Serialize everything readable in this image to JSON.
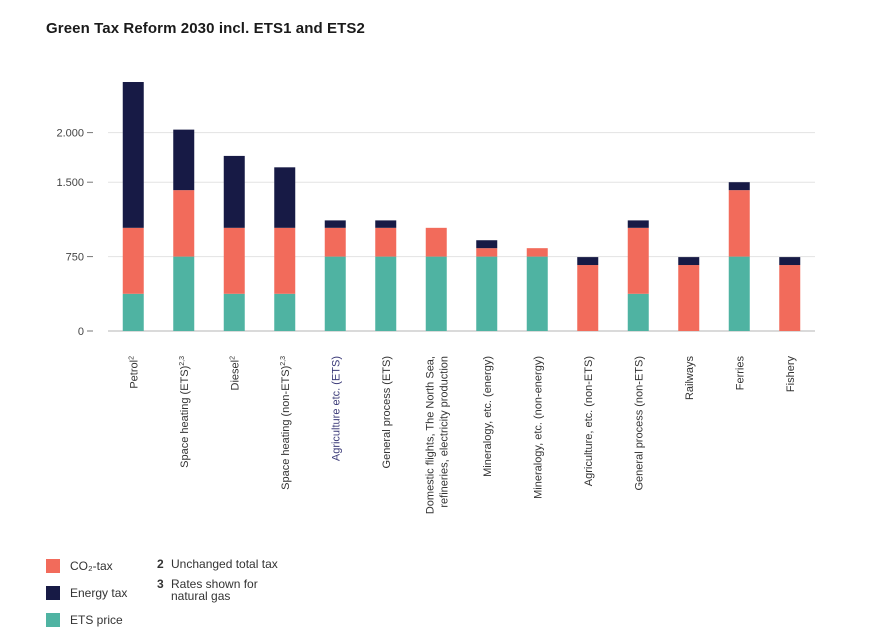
{
  "chart_data": {
    "type": "bar",
    "stacked": true,
    "title": "Green Tax Reform 2030 incl. ETS1 and ETS2",
    "ylim": [
      0,
      2500
    ],
    "yticks": [
      0,
      750,
      1500,
      2000
    ],
    "ytick_labels": [
      "0",
      "750",
      "1.500",
      "2.000"
    ],
    "grid": true,
    "categories": [
      "Petrol",
      "Space heating (ETS)",
      "Diesel",
      "Space heating (non-ETS)",
      "Agriculture etc. (ETS)",
      "General process (ETS)",
      "Domestic flights, The North Sea, refineries, electricity production",
      "Mineralogy, etc. (energy)",
      "Mineralogy, etc. (non-energy)",
      "Agriculture, etc. (non-ETS)",
      "General process (non-ETS)",
      "Railways",
      "Ferries",
      "Fishery"
    ],
    "category_lines": [
      [
        "Petrol",
        "2"
      ],
      [
        "Space heating (ETS)",
        "2,3"
      ],
      [
        "Diesel",
        "2"
      ],
      [
        "Space heating  (non-ETS)",
        "2,3"
      ],
      [
        "Agriculture etc. (ETS)",
        ""
      ],
      [
        "General process  (ETS)",
        ""
      ],
      [
        "Domestic flights, The North Sea,",
        "refineries,  electricity production"
      ],
      [
        "Mineralogy, etc. (energy)",
        ""
      ],
      [
        "Mineralogy, etc. (non-energy)",
        ""
      ],
      [
        "Agriculture, etc. (non-ETS)",
        ""
      ],
      [
        "General process (non-ETS)",
        ""
      ],
      [
        "Railways",
        ""
      ],
      [
        "Ferries",
        ""
      ],
      [
        "Fishery",
        ""
      ]
    ],
    "series": [
      {
        "name": "ETS price",
        "color": "#4fb3a2",
        "values": [
          375,
          750,
          375,
          375,
          750,
          750,
          750,
          750,
          750,
          0,
          375,
          0,
          750,
          0
        ]
      },
      {
        "name": "CO₂-tax",
        "color": "#f26b5b",
        "values": [
          665,
          670,
          665,
          665,
          290,
          290,
          290,
          85,
          85,
          665,
          665,
          665,
          670,
          665
        ]
      },
      {
        "name": "Energy tax",
        "color": "#171a45",
        "values": [
          1470,
          610,
          725,
          610,
          75,
          75,
          0,
          80,
          0,
          80,
          75,
          80,
          80,
          80
        ]
      }
    ]
  },
  "legend": [
    {
      "label": "CO₂-tax",
      "color": "#f26b5b"
    },
    {
      "label": "Energy tax",
      "color": "#171a45"
    },
    {
      "label": "ETS price",
      "color": "#4fb3a2"
    }
  ],
  "notes": [
    {
      "num": "2",
      "text": "Unchanged total tax"
    },
    {
      "num": "3",
      "text": "Rates shown for natural gas"
    }
  ]
}
